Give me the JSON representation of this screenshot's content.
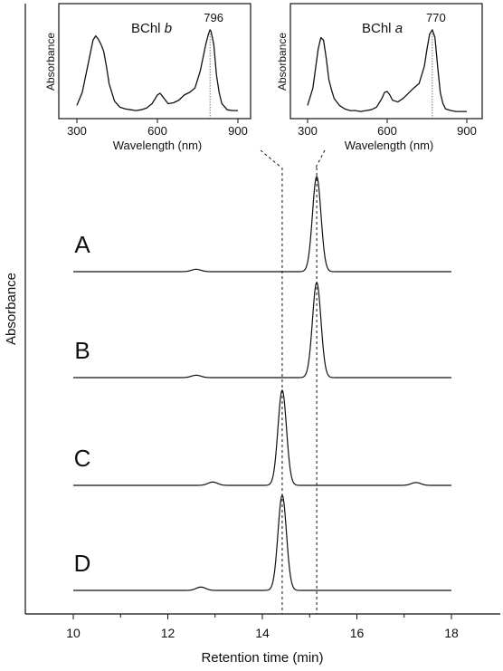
{
  "chart_data": [
    {
      "type": "line",
      "title": "",
      "xlabel": "Retention time (min)",
      "ylabel": "Absorbance",
      "xlim": [
        9,
        19
      ],
      "xticks": [
        10,
        12,
        14,
        16,
        18
      ],
      "series": [
        {
          "name": "A",
          "peaks": [
            {
              "x": 15.15,
              "height": 1.0,
              "width": 0.09
            },
            {
              "x": 12.6,
              "height": 0.025,
              "width": 0.1
            }
          ]
        },
        {
          "name": "B",
          "peaks": [
            {
              "x": 15.15,
              "height": 1.0,
              "width": 0.09
            },
            {
              "x": 12.6,
              "height": 0.025,
              "width": 0.1
            }
          ]
        },
        {
          "name": "C",
          "peaks": [
            {
              "x": 14.42,
              "height": 1.0,
              "width": 0.09
            },
            {
              "x": 12.95,
              "height": 0.035,
              "width": 0.1
            },
            {
              "x": 17.25,
              "height": 0.03,
              "width": 0.1
            }
          ]
        },
        {
          "name": "D",
          "peaks": [
            {
              "x": 14.42,
              "height": 1.0,
              "width": 0.09
            },
            {
              "x": 12.7,
              "height": 0.035,
              "width": 0.1
            }
          ]
        }
      ],
      "reference_lines_x": [
        14.42,
        15.15
      ]
    },
    {
      "type": "line",
      "title": "BChl b",
      "title_main": "BChl ",
      "title_italic": "b",
      "xlabel": "Wavelength (nm)",
      "ylabel": "Absorbance",
      "xlim": [
        300,
        900
      ],
      "xticks": [
        300,
        600,
        900
      ],
      "peak_label": "796",
      "peak_nm": 796,
      "spectrum": {
        "x": [
          300,
          320,
          340,
          360,
          370,
          380,
          390,
          400,
          410,
          420,
          440,
          460,
          480,
          500,
          520,
          540,
          560,
          580,
          600,
          610,
          620,
          640,
          660,
          680,
          700,
          720,
          740,
          760,
          770,
          780,
          790,
          796,
          800,
          810,
          820,
          830,
          840,
          860,
          880,
          900
        ],
        "y": [
          0.1,
          0.25,
          0.55,
          0.85,
          0.9,
          0.86,
          0.8,
          0.72,
          0.55,
          0.35,
          0.15,
          0.08,
          0.06,
          0.05,
          0.04,
          0.05,
          0.07,
          0.12,
          0.22,
          0.24,
          0.2,
          0.12,
          0.13,
          0.16,
          0.22,
          0.25,
          0.3,
          0.5,
          0.65,
          0.8,
          0.92,
          0.97,
          0.95,
          0.8,
          0.45,
          0.25,
          0.12,
          0.05,
          0.04,
          0.04
        ]
      }
    },
    {
      "type": "line",
      "title": "BChl a",
      "title_main": "BChl ",
      "title_italic": "a",
      "xlabel": "Wavelength (nm)",
      "ylabel": "Absorbance",
      "xlim": [
        300,
        900
      ],
      "xticks": [
        300,
        600,
        900
      ],
      "peak_label": "770",
      "peak_nm": 770,
      "spectrum": {
        "x": [
          300,
          320,
          340,
          350,
          360,
          370,
          380,
          390,
          400,
          420,
          440,
          460,
          480,
          500,
          520,
          540,
          560,
          580,
          590,
          600,
          610,
          620,
          640,
          660,
          680,
          700,
          720,
          740,
          750,
          760,
          770,
          780,
          790,
          800,
          810,
          820,
          840,
          860,
          880,
          900
        ],
        "y": [
          0.1,
          0.3,
          0.75,
          0.88,
          0.85,
          0.65,
          0.4,
          0.28,
          0.18,
          0.1,
          0.06,
          0.04,
          0.04,
          0.03,
          0.04,
          0.05,
          0.08,
          0.18,
          0.25,
          0.26,
          0.22,
          0.16,
          0.14,
          0.18,
          0.24,
          0.3,
          0.35,
          0.55,
          0.75,
          0.92,
          0.97,
          0.88,
          0.55,
          0.25,
          0.12,
          0.06,
          0.04,
          0.03,
          0.03,
          0.03
        ]
      }
    }
  ]
}
